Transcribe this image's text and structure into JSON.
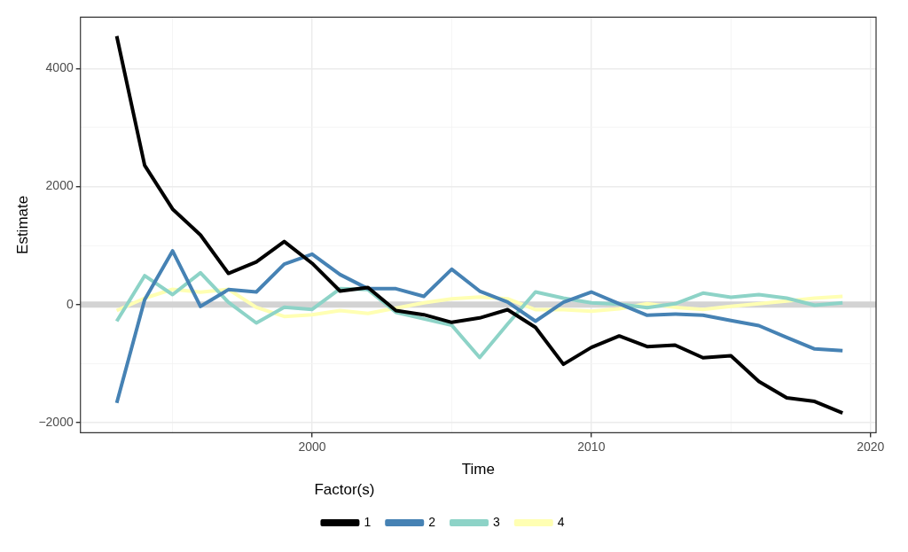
{
  "chart_data": {
    "type": "line",
    "xlabel": "Time",
    "ylabel": "Estimate",
    "legend_title": "Factor(s)",
    "x": [
      1993,
      1994,
      1995,
      1996,
      1997,
      1998,
      1999,
      2000,
      2001,
      2002,
      2003,
      2004,
      2005,
      2006,
      2007,
      2008,
      2009,
      2010,
      2011,
      2012,
      2013,
      2014,
      2015,
      2016,
      2017,
      2018,
      2019
    ],
    "series": [
      {
        "name": "1",
        "color": "#000000",
        "values": [
          4550,
          2360,
          1620,
          1180,
          530,
          725,
          1070,
          700,
          230,
          290,
          -100,
          -170,
          -300,
          -225,
          -85,
          -385,
          -1010,
          -725,
          -530,
          -710,
          -685,
          -900,
          -865,
          -1300,
          -1580,
          -1640,
          -1835
        ]
      },
      {
        "name": "2",
        "color": "#4682b4",
        "values": [
          -1665,
          85,
          910,
          -30,
          255,
          215,
          685,
          855,
          510,
          270,
          270,
          140,
          600,
          230,
          45,
          -280,
          40,
          215,
          15,
          -180,
          -160,
          -180,
          -270,
          -355,
          -555,
          -750,
          -780
        ]
      },
      {
        "name": "3",
        "color": "#8dd3c7",
        "values": [
          -280,
          490,
          170,
          540,
          40,
          -310,
          -45,
          -80,
          270,
          255,
          -130,
          -240,
          -350,
          -895,
          -330,
          215,
          110,
          30,
          10,
          -50,
          15,
          195,
          125,
          170,
          110,
          -10,
          30
        ]
      },
      {
        "name": "4",
        "color": "#ffffb3",
        "values": [
          -100,
          110,
          260,
          210,
          260,
          -45,
          -200,
          -170,
          -100,
          -150,
          -60,
          30,
          100,
          130,
          100,
          -85,
          -85,
          -110,
          -70,
          15,
          -45,
          -80,
          -30,
          15,
          60,
          110,
          140
        ]
      }
    ],
    "xlim": [
      1991.7,
      2020.2
    ],
    "ylim": [
      -2170,
      4870
    ],
    "xticks": [
      {
        "value": 1995,
        "label": null
      },
      2000,
      {
        "value": 2005,
        "label": null
      },
      2010,
      {
        "value": 2015,
        "label": null
      },
      2020
    ],
    "yticks": [
      -2000,
      {
        "value": -1000,
        "label": null
      },
      0,
      {
        "value": 1000,
        "label": null
      },
      2000,
      {
        "value": 3000,
        "label": null
      },
      4000
    ],
    "ref_lines": [
      {
        "axis": "y",
        "value": 0,
        "color": "#d3d3d3"
      }
    ],
    "grid": true,
    "legend": "bottom",
    "marker": "none",
    "line_style": "solid"
  }
}
